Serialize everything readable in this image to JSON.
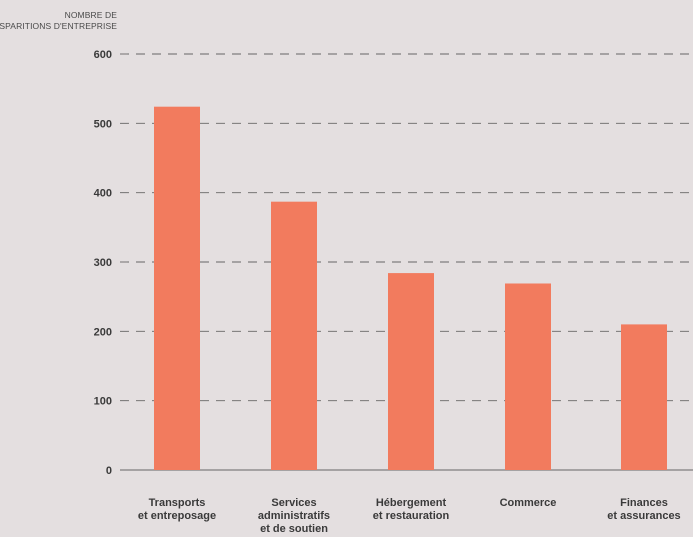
{
  "chart_data": {
    "type": "bar",
    "ylabel_lines": [
      "NOMBRE DE",
      "DISPARITIONS D'ENTREPRISE"
    ],
    "categories": [
      [
        "Transports",
        "et entreposage"
      ],
      [
        "Services",
        "administratifs",
        "et de soutien"
      ],
      [
        "Hébergement",
        "et restauration"
      ],
      [
        "Commerce"
      ],
      [
        "Finances",
        "et assurances"
      ]
    ],
    "values": [
      524,
      387,
      284,
      269,
      210
    ],
    "ylim": [
      0,
      600
    ],
    "yticks": [
      0,
      100,
      200,
      300,
      400,
      500,
      600
    ],
    "grid": "dashed-horizontal",
    "bar_color": "#f27b5e",
    "grid_color": "#666666",
    "text_color": "#3a3a3a"
  }
}
